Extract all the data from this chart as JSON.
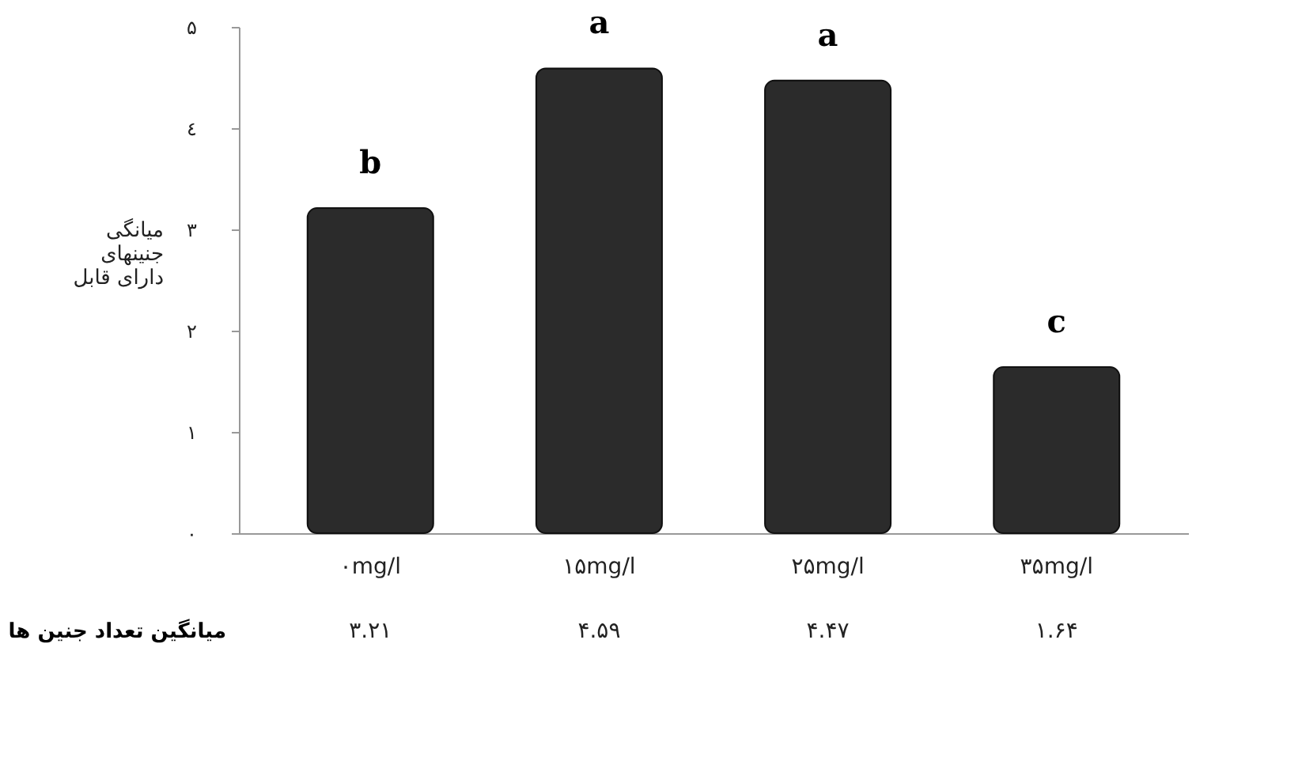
{
  "chart_data": {
    "type": "bar",
    "ylabel": "میانگی\nجنینهای\nدارای قابل",
    "categories": [
      "۰mg/l",
      "۱۵mg/l",
      "۲۵mg/l",
      "۳۵mg/l"
    ],
    "series": [
      {
        "name": "میانگین تعداد جنین ها",
        "color": "#2b2b2b",
        "values": [
          3.21,
          4.59,
          4.47,
          1.64
        ],
        "value_labels": [
          "۳.۲۱",
          "۴.۵۹",
          "۴.۴۷",
          "۱.۶۴"
        ]
      }
    ],
    "ylim": [
      0,
      5
    ],
    "yticks": [
      {
        "value": 0,
        "label": "۰"
      },
      {
        "value": 1,
        "label": "۱"
      },
      {
        "value": 2,
        "label": "۲"
      },
      {
        "value": 3,
        "label": "۳"
      },
      {
        "value": 4,
        "label": "٤"
      },
      {
        "value": 5,
        "label": "۵"
      }
    ],
    "annotations": [
      {
        "text": "b",
        "x": "۰mg/l",
        "y": 3.21
      },
      {
        "text": "a",
        "x": "۱۵mg/l",
        "y": 4.59
      },
      {
        "text": "a",
        "x": "۲۵mg/l",
        "y": 4.47
      },
      {
        "text": "c",
        "x": "۳۵mg/l",
        "y": 1.64
      }
    ],
    "grid": false
  }
}
